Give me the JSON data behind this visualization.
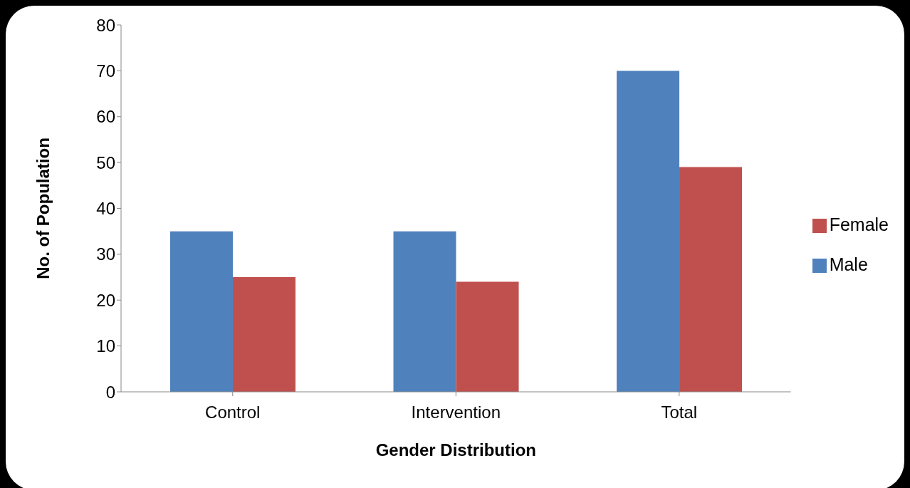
{
  "chart_data": {
    "type": "bar",
    "xlabel": "Gender Distribution",
    "ylabel": "No. of Population",
    "categories": [
      "Control",
      "Intervention",
      "Total"
    ],
    "series": [
      {
        "name": "Male",
        "color": "#4f81bd",
        "values": [
          35,
          35,
          70
        ]
      },
      {
        "name": "Female",
        "color": "#c0504d",
        "values": [
          25,
          24,
          49
        ]
      }
    ],
    "ylim": [
      0,
      80
    ],
    "yticks": [
      0,
      10,
      20,
      30,
      40,
      50,
      60,
      70,
      80
    ],
    "grid": false,
    "legend": "right"
  }
}
